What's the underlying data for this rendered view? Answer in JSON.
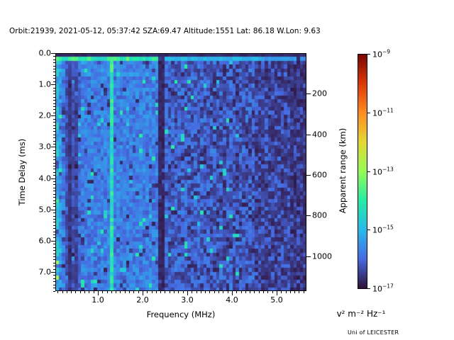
{
  "title": "Orbit:21939, 2021-05-12, 05:37:42 SZA:69.47 Altitude:1551 Lat: 86.18 W.Lon: 9.63",
  "credit": "Uni of LEICESTER",
  "chart_data": {
    "type": "heatmap",
    "title": "Orbit:21939, 2021-05-12, 05:37:42 SZA:69.47 Altitude:1551 Lat: 86.18 W.Lon: 9.63",
    "xlabel": "Frequency (MHz)",
    "ylabel": "Time Delay (ms)",
    "y2label": "Apparent range (km)",
    "colorbar_label": "v² m⁻² Hz⁻¹",
    "colormap": "turbo",
    "grid": false,
    "legend": "none",
    "xlim": [
      0.048,
      5.667
    ],
    "ylim_ms": [
      0,
      7.61
    ],
    "x_major_ticks": [
      1,
      2,
      3,
      4,
      5
    ],
    "x_tick_labels": [
      "1.0",
      "2.0",
      "3.0",
      "4.0",
      "5.0"
    ],
    "x_minor_step_mhz": 0.1,
    "y_major_ticks": [
      0,
      1,
      2,
      3,
      4,
      5,
      6,
      7
    ],
    "y_tick_labels": [
      "0.0",
      "1.0",
      "2.0",
      "3.0",
      "4.0",
      "5.0",
      "6.0",
      "7.0"
    ],
    "y_minor_step_ms": 0.1,
    "y2_ticks_km": [
      200,
      400,
      600,
      800,
      1000
    ],
    "y2_tick_labels": [
      "200",
      "400",
      "600",
      "800",
      "1000"
    ],
    "y2_km_per_ms": 154,
    "colorbar_value_range_exponents": [
      -9,
      -17
    ],
    "colorbar_tick_exponents": [
      "−9",
      "−11",
      "−13",
      "−15",
      "−17"
    ],
    "heatmap": {
      "cols": 78,
      "rows": 62,
      "seed": 21939,
      "background_levels": {
        "low_freq_below_2.35MHz": 0.155,
        "mid_freq_2.35_4.5MHz": 0.115,
        "high_freq_4.5_5.3MHz": 0.09,
        "top_freq_above_5.3MHz": 0.065
      },
      "noise_amplitude": 0.11,
      "features": {
        "dark_first_row_ms": [
          0,
          0.12
        ],
        "bright_surface_echo_row_ms": [
          0.12,
          0.25
        ],
        "surface_echo_strong_range_mhz": [
          0.05,
          2.36
        ],
        "surface_echo_weak_range_mhz": [
          2.5,
          4.7
        ],
        "dark_vertical_bands_mhz": [
          [
            0.32,
            0.4
          ],
          [
            0.43,
            0.47
          ],
          [
            0.49,
            0.53
          ],
          [
            2.36,
            2.5
          ]
        ],
        "bright_vertical_line_mhz": 1.33,
        "bright_left_edge_mhz": [
          0.05,
          0.17
        ],
        "striped_low_freq_region_mhz": [
          0.05,
          0.62
        ]
      }
    }
  }
}
